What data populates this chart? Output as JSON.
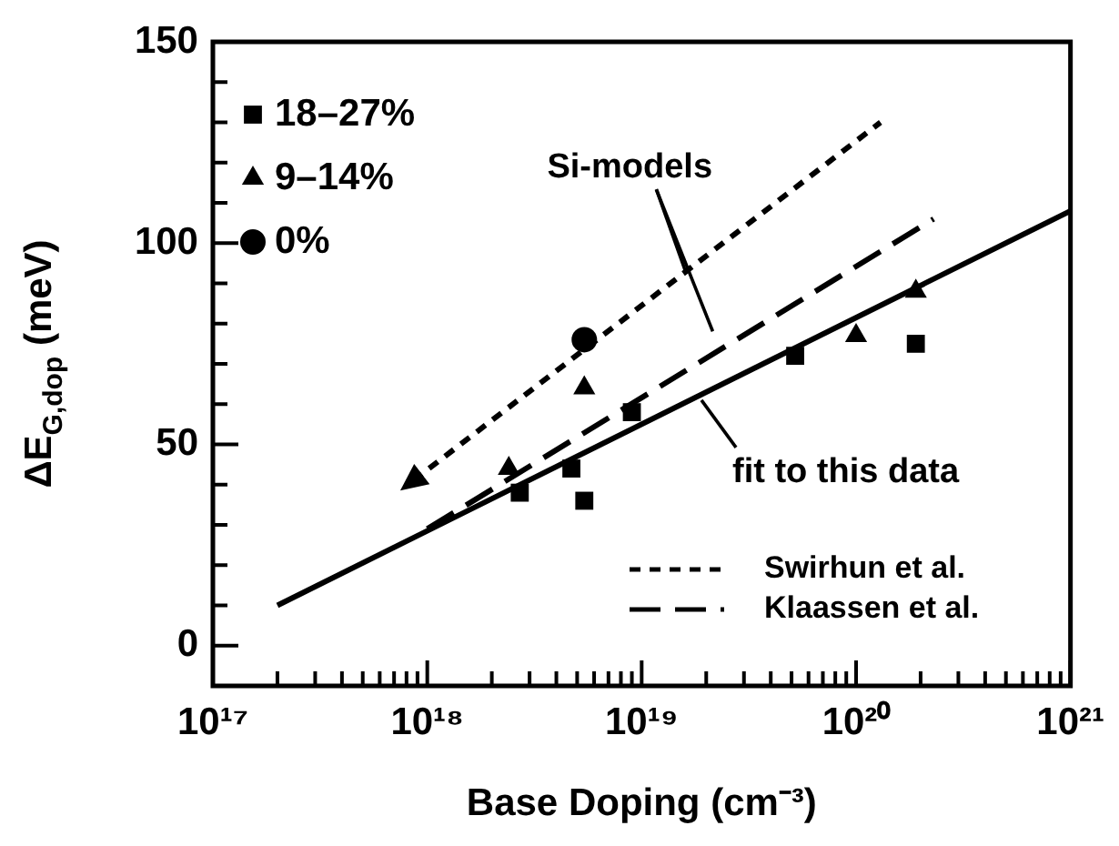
{
  "chart_data": {
    "type": "scatter",
    "xlabel": "Base Doping (cm⁻³)",
    "ylabel": "ΔE$_{G,dop}$ (meV)",
    "log": "x",
    "grid": false,
    "legend": "top left",
    "xlim": [
      1e+17,
      1e+21
    ],
    "ylim": [
      -10,
      150
    ],
    "xticks": [
      {
        "value": 1e+17,
        "label": "10¹⁷"
      },
      {
        "value": 2e+17,
        "label": null
      },
      {
        "value": 3e+17,
        "label": null
      },
      {
        "value": 4e+17,
        "label": null
      },
      {
        "value": 5e+17,
        "label": null
      },
      {
        "value": 6e+17,
        "label": null
      },
      {
        "value": 7e+17,
        "label": null
      },
      {
        "value": 8e+17,
        "label": null
      },
      {
        "value": 9e+17,
        "label": null
      },
      {
        "value": 1e+18,
        "label": "10¹⁸"
      },
      {
        "value": 2e+18,
        "label": null
      },
      {
        "value": 3e+18,
        "label": null
      },
      {
        "value": 4e+18,
        "label": null
      },
      {
        "value": 5e+18,
        "label": null
      },
      {
        "value": 6e+18,
        "label": null
      },
      {
        "value": 7e+18,
        "label": null
      },
      {
        "value": 8e+18,
        "label": null
      },
      {
        "value": 9e+18,
        "label": null
      },
      {
        "value": 1e+19,
        "label": "10¹⁹"
      },
      {
        "value": 2e+19,
        "label": null
      },
      {
        "value": 3e+19,
        "label": null
      },
      {
        "value": 4e+19,
        "label": null
      },
      {
        "value": 5e+19,
        "label": null
      },
      {
        "value": 6e+19,
        "label": null
      },
      {
        "value": 7e+19,
        "label": null
      },
      {
        "value": 8e+19,
        "label": null
      },
      {
        "value": 9e+19,
        "label": null
      },
      {
        "value": 1e+20,
        "label": "10²⁰"
      },
      {
        "value": 2e+20,
        "label": null
      },
      {
        "value": 3e+20,
        "label": null
      },
      {
        "value": 4e+20,
        "label": null
      },
      {
        "value": 5e+20,
        "label": null
      },
      {
        "value": 6e+20,
        "label": null
      },
      {
        "value": 7e+20,
        "label": null
      },
      {
        "value": 8e+20,
        "label": null
      },
      {
        "value": 9e+20,
        "label": null
      },
      {
        "value": 1e+21,
        "label": "10²¹"
      }
    ],
    "yticks": [
      0,
      {
        "value": 10,
        "label": null
      },
      {
        "value": 20,
        "label": null
      },
      {
        "value": 30,
        "label": null
      },
      {
        "value": 40,
        "label": null
      },
      50,
      {
        "value": 60,
        "label": null
      },
      {
        "value": 70,
        "label": null
      },
      {
        "value": 80,
        "label": null
      },
      {
        "value": 90,
        "label": null
      },
      100,
      {
        "value": 110,
        "label": null
      },
      {
        "value": 120,
        "label": null
      },
      {
        "value": 130,
        "label": null
      },
      {
        "value": 140,
        "label": null
      },
      150
    ],
    "series": [
      {
        "name": "18–27%",
        "marker": "square",
        "color": "#000000",
        "x": [
          2.7e+18,
          4.7e+18,
          5.4e+18,
          9e+18,
          5.2e+19,
          1.9e+20
        ],
        "values": [
          38,
          44,
          36,
          58,
          72,
          75
        ]
      },
      {
        "name": "9–14%",
        "marker": "triangle",
        "color": "#000000",
        "x": [
          2.4e+18,
          5.4e+18,
          1e+20,
          1.9e+20
        ],
        "values": [
          44,
          64,
          77,
          88
        ]
      },
      {
        "name": "0%",
        "marker": "circle",
        "color": "#000000",
        "x": [
          5.4e+18
        ],
        "values": [
          76
        ]
      },
      {
        "type": "line",
        "line_style": "solid",
        "marker": "none",
        "color": "#000000",
        "x": [
          2e+17,
          1e+21
        ],
        "values": [
          10,
          108
        ]
      },
      {
        "name": "Swirhun et al.",
        "type": "line",
        "line_style": "dotted",
        "marker": "triangle",
        "color": "#000000",
        "x": [
          8.6e+17,
          1.3e+20
        ],
        "values": [
          41,
          130
        ]
      },
      {
        "name": "Klaassen et al.",
        "type": "line",
        "line_style": "dashed",
        "marker": "none",
        "color": "#000000",
        "x": [
          1e+18,
          2.3e+20
        ],
        "values": [
          29,
          106
        ]
      }
    ],
    "annotations": [
      {
        "text": "Si-models",
        "x": 1.6e+19,
        "y": 93
      },
      {
        "text": "fit to this data",
        "x": 1.9e+19,
        "y": 61
      }
    ]
  }
}
